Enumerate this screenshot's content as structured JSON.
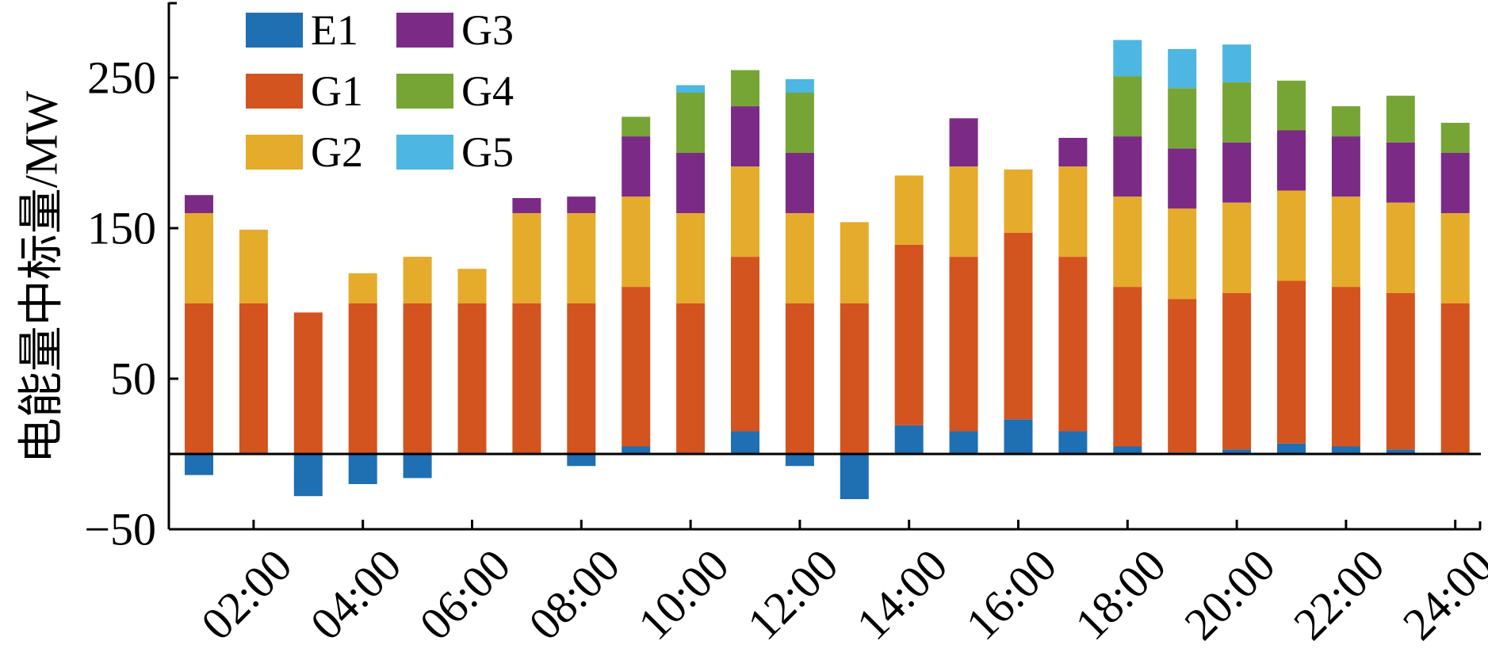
{
  "chart_data": {
    "type": "bar",
    "stacked": true,
    "title": "",
    "xlabel": "",
    "ylabel": "电能量中标量/MW",
    "ylim": [
      -50,
      300
    ],
    "y_ticks": [
      -50,
      50,
      150,
      250
    ],
    "y_tick_labels": [
      "−50",
      "50",
      "150",
      "250"
    ],
    "x_tick_labels": [
      "02:00",
      "04:00",
      "06:00",
      "08:00",
      "10:00",
      "12:00",
      "14:00",
      "16:00",
      "18:00",
      "20:00",
      "22:00",
      "24:00"
    ],
    "legend_position": "top-left",
    "grid": false,
    "zero_line": true,
    "categories": [
      "01:00",
      "02:00",
      "03:00",
      "04:00",
      "05:00",
      "06:00",
      "07:00",
      "08:00",
      "09:00",
      "10:00",
      "11:00",
      "12:00",
      "13:00",
      "14:00",
      "15:00",
      "16:00",
      "17:00",
      "18:00",
      "19:00",
      "20:00",
      "21:00",
      "22:00",
      "23:00",
      "24:00"
    ],
    "series": [
      {
        "name": "E1",
        "color": "#1f6fb3",
        "values": [
          -14,
          0,
          -28,
          -20,
          -16,
          0,
          0,
          -8,
          5,
          0,
          15,
          -8,
          -30,
          19,
          15,
          23,
          15,
          5,
          1,
          3,
          7,
          5,
          3,
          0
        ]
      },
      {
        "name": "G1",
        "color": "#d3541e",
        "values": [
          100,
          100,
          94,
          100,
          100,
          100,
          100,
          100,
          106,
          100,
          116,
          100,
          100,
          120,
          116,
          124,
          116,
          106,
          102,
          104,
          108,
          106,
          104,
          100
        ]
      },
      {
        "name": "G2",
        "color": "#e5ab2b",
        "values": [
          60,
          49,
          0,
          20,
          31,
          23,
          60,
          60,
          60,
          60,
          60,
          60,
          54,
          46,
          60,
          42,
          60,
          60,
          60,
          60,
          60,
          60,
          60,
          60
        ]
      },
      {
        "name": "G3",
        "color": "#7b2b86",
        "values": [
          12,
          0,
          0,
          0,
          0,
          0,
          10,
          11,
          40,
          40,
          40,
          40,
          0,
          0,
          32,
          0,
          19,
          40,
          40,
          40,
          40,
          40,
          40,
          40
        ]
      },
      {
        "name": "G4",
        "color": "#77a535",
        "values": [
          0,
          0,
          0,
          0,
          0,
          0,
          0,
          0,
          13,
          40,
          24,
          40,
          0,
          0,
          0,
          0,
          0,
          40,
          40,
          40,
          33,
          20,
          31,
          20
        ]
      },
      {
        "name": "G5",
        "color": "#4db6e2",
        "values": [
          0,
          0,
          0,
          0,
          0,
          0,
          0,
          0,
          0,
          5,
          0,
          9,
          0,
          0,
          0,
          0,
          0,
          24,
          26,
          25,
          0,
          0,
          0,
          0
        ]
      }
    ]
  }
}
